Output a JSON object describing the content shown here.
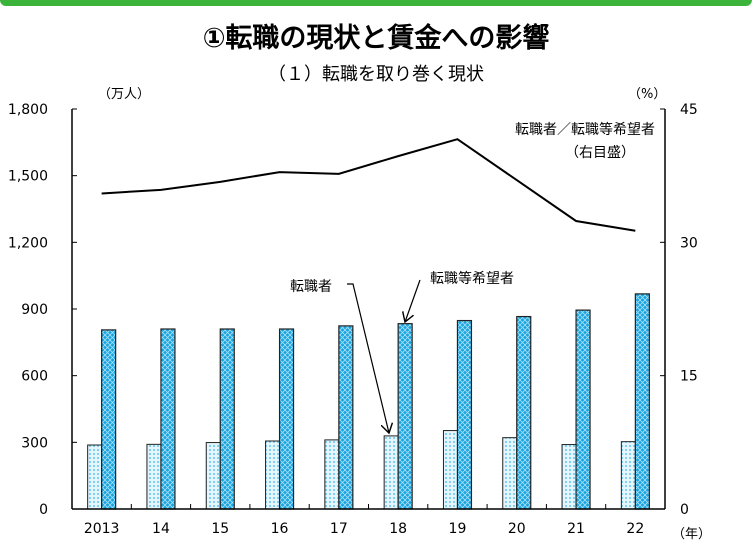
{
  "title": "①転職の現状と賃金への影響",
  "subtitle": "（１）転職を取り巻く現状",
  "chart_data": {
    "type": "bar",
    "categories": [
      "2013",
      "14",
      "15",
      "16",
      "17",
      "18",
      "19",
      "20",
      "21",
      "22"
    ],
    "series": [
      {
        "name": "転職者",
        "axis": "left",
        "type": "bar",
        "values": [
          288,
          291,
          299,
          306,
          311,
          329,
          353,
          321,
          290,
          303
        ]
      },
      {
        "name": "転職等希望者",
        "axis": "left",
        "type": "bar",
        "values": [
          806,
          810,
          810,
          810,
          824,
          834,
          848,
          866,
          895,
          968
        ]
      },
      {
        "name": "転職者／転職等希望者",
        "axis": "right",
        "type": "line",
        "values": [
          35.5,
          35.9,
          36.8,
          37.9,
          37.7,
          39.7,
          41.6,
          37.0,
          32.4,
          31.3
        ]
      }
    ],
    "ylabel": "（万人）",
    "y2label": "（%）",
    "xlabel": "（年）",
    "ylim": [
      0,
      1800
    ],
    "yticks": [
      "0",
      "300",
      "600",
      "900",
      "1,200",
      "1,500",
      "1,800"
    ],
    "ytick_values": [
      0,
      300,
      600,
      900,
      1200,
      1500,
      1800
    ],
    "y2lim": [
      0,
      45
    ],
    "y2ticks": [
      "0",
      "15",
      "30",
      "45"
    ],
    "y2tick_values": [
      0,
      15,
      30,
      45
    ],
    "annotations": {
      "line_label": "転職者／転職等希望者",
      "line_axis_note": "（右目盛）",
      "bar1_label": "転職者",
      "bar2_label": "転職等希望者"
    },
    "colors": {
      "bar1": "#bfe6f7",
      "bar2": "#1ea8e0",
      "line": "#000000"
    }
  }
}
